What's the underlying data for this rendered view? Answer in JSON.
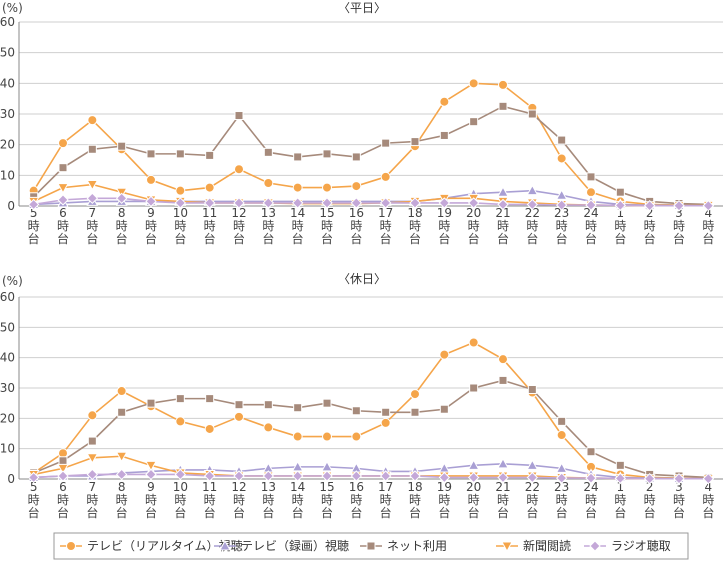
{
  "chart_data": [
    {
      "type": "line",
      "title": "〈平日〉",
      "unit_label": "(%)",
      "ylim": [
        0,
        60
      ],
      "yticks": [
        0,
        10,
        20,
        30,
        40,
        50,
        60
      ],
      "grid": true,
      "categories": [
        [
          "5",
          "時",
          "台"
        ],
        [
          "6",
          "時",
          "台"
        ],
        [
          "7",
          "時",
          "台"
        ],
        [
          "8",
          "時",
          "台"
        ],
        [
          "9",
          "時",
          "台"
        ],
        [
          "10",
          "時",
          "台"
        ],
        [
          "11",
          "時",
          "台"
        ],
        [
          "12",
          "時",
          "台"
        ],
        [
          "13",
          "時",
          "台"
        ],
        [
          "14",
          "時",
          "台"
        ],
        [
          "15",
          "時",
          "台"
        ],
        [
          "16",
          "時",
          "台"
        ],
        [
          "17",
          "時",
          "台"
        ],
        [
          "18",
          "時",
          "台"
        ],
        [
          "19",
          "時",
          "台"
        ],
        [
          "20",
          "時",
          "台"
        ],
        [
          "21",
          "時",
          "台"
        ],
        [
          "22",
          "時",
          "台"
        ],
        [
          "23",
          "時",
          "台"
        ],
        [
          "24",
          "時",
          "台"
        ],
        [
          "1",
          "時",
          "台"
        ],
        [
          "2",
          "時",
          "台"
        ],
        [
          "3",
          "時",
          "台"
        ],
        [
          "4",
          "時",
          "台"
        ]
      ],
      "series": [
        {
          "name": "テレビ（リアルタイム）視聴",
          "color": "#f5a54a",
          "marker": "circle",
          "values": [
            5,
            20.5,
            28,
            18.5,
            8.5,
            5,
            6,
            12,
            7.5,
            6,
            6,
            6.5,
            9.5,
            19.5,
            34,
            40,
            39.5,
            32,
            15.5,
            4.5,
            1.5,
            0.5,
            0.3,
            0.3
          ]
        },
        {
          "name": "テレビ（録画）視聴",
          "color": "#a99fd4",
          "marker": "triangle",
          "values": [
            0.5,
            1,
            1.5,
            1.5,
            1.5,
            1.5,
            1.5,
            1.5,
            1.5,
            1.5,
            1.5,
            1.5,
            1.5,
            1.5,
            2.5,
            4,
            4.5,
            5,
            3.5,
            1.5,
            0.5,
            0.3,
            0.2,
            0.2
          ]
        },
        {
          "name": "ネット利用",
          "color": "#a68a7b",
          "marker": "square",
          "values": [
            3,
            12.5,
            18.5,
            19.5,
            17,
            17,
            16.5,
            29.5,
            17.5,
            16,
            17,
            16,
            20.5,
            21,
            23,
            27.5,
            32.5,
            30,
            21.5,
            9.5,
            4.5,
            1.5,
            0.8,
            0.5
          ]
        },
        {
          "name": "新聞閲読",
          "color": "#f5a54a",
          "marker": "triangle-down",
          "values": [
            1.5,
            6,
            7,
            4.5,
            2,
            1.5,
            1,
            1,
            1,
            0.8,
            0.8,
            0.8,
            1,
            1.5,
            2.5,
            2.5,
            1.5,
            1,
            0.5,
            0.3,
            0.2,
            0.1,
            0.1,
            0.2
          ]
        },
        {
          "name": "ラジオ聴取",
          "color": "#c4a8d8",
          "marker": "diamond",
          "values": [
            0.5,
            2,
            2.5,
            2.5,
            1.5,
            1,
            1,
            1,
            1,
            1,
            1,
            1,
            1,
            1,
            1,
            1,
            0.5,
            0.5,
            0.3,
            0.3,
            0.2,
            0.1,
            0.1,
            0.1
          ]
        }
      ]
    },
    {
      "type": "line",
      "title": "〈休日〉",
      "unit_label": "(%)",
      "ylim": [
        0,
        60
      ],
      "yticks": [
        0,
        10,
        20,
        30,
        40,
        50,
        60
      ],
      "grid": true,
      "categories": [
        [
          "5",
          "時",
          "台"
        ],
        [
          "6",
          "時",
          "台"
        ],
        [
          "7",
          "時",
          "台"
        ],
        [
          "8",
          "時",
          "台"
        ],
        [
          "9",
          "時",
          "台"
        ],
        [
          "10",
          "時",
          "台"
        ],
        [
          "11",
          "時",
          "台"
        ],
        [
          "12",
          "時",
          "台"
        ],
        [
          "13",
          "時",
          "台"
        ],
        [
          "14",
          "時",
          "台"
        ],
        [
          "15",
          "時",
          "台"
        ],
        [
          "16",
          "時",
          "台"
        ],
        [
          "17",
          "時",
          "台"
        ],
        [
          "18",
          "時",
          "台"
        ],
        [
          "19",
          "時",
          "台"
        ],
        [
          "20",
          "時",
          "台"
        ],
        [
          "21",
          "時",
          "台"
        ],
        [
          "22",
          "時",
          "台"
        ],
        [
          "23",
          "時",
          "台"
        ],
        [
          "24",
          "時",
          "台"
        ],
        [
          "1",
          "時",
          "台"
        ],
        [
          "2",
          "時",
          "台"
        ],
        [
          "3",
          "時",
          "台"
        ],
        [
          "4",
          "時",
          "台"
        ]
      ],
      "series": [
        {
          "name": "テレビ（リアルタイム）視聴",
          "color": "#f5a54a",
          "marker": "circle",
          "values": [
            2,
            8.5,
            21,
            29,
            24,
            19,
            16.5,
            20.5,
            17,
            14,
            14,
            14,
            18.5,
            28,
            41,
            45,
            39.5,
            28.5,
            14.5,
            4,
            1.5,
            0.5,
            0.3,
            0.3
          ]
        },
        {
          "name": "テレビ（録画）視聴",
          "color": "#a99fd4",
          "marker": "triangle",
          "values": [
            0.5,
            1,
            1,
            2,
            2.5,
            3,
            3,
            2.5,
            3.5,
            4,
            4,
            3.5,
            2.5,
            2.5,
            3.5,
            4.5,
            5,
            4.5,
            3.5,
            1.5,
            0.5,
            0.3,
            0.2,
            0.2
          ]
        },
        {
          "name": "ネット利用",
          "color": "#a68a7b",
          "marker": "square",
          "values": [
            2,
            6,
            12.5,
            22,
            25,
            26.5,
            26.5,
            24.5,
            24.5,
            23.5,
            25,
            22.5,
            22,
            22,
            23,
            30,
            32.5,
            29.5,
            19,
            9,
            4.5,
            1.5,
            1,
            0.5
          ]
        },
        {
          "name": "新聞閲読",
          "color": "#f5a54a",
          "marker": "triangle-down",
          "values": [
            1.5,
            3.5,
            7,
            7.5,
            4.5,
            2,
            1.5,
            1,
            1,
            1,
            1,
            1,
            1,
            1,
            1,
            1,
            1,
            1,
            0.5,
            0.3,
            0.2,
            0.1,
            0.1,
            0.1
          ]
        },
        {
          "name": "ラジオ聴取",
          "color": "#c4a8d8",
          "marker": "diamond",
          "values": [
            0.5,
            1,
            1.5,
            1.5,
            1.5,
            1.5,
            1,
            1,
            1,
            1,
            1,
            1,
            1,
            1,
            0.5,
            0.5,
            0.5,
            0.5,
            0.3,
            0.3,
            0.2,
            0.1,
            0.1,
            0.1
          ]
        }
      ]
    }
  ],
  "legend": [
    {
      "label": "テレビ（リアルタイム）視聴",
      "color": "#f5a54a",
      "marker": "circle"
    },
    {
      "label": "テレビ（録画）視聴",
      "color": "#a99fd4",
      "marker": "triangle"
    },
    {
      "label": "ネット利用",
      "color": "#a68a7b",
      "marker": "square"
    },
    {
      "label": "新聞閲読",
      "color": "#f5a54a",
      "marker": "triangle-down"
    },
    {
      "label": "ラジオ聴取",
      "color": "#c4a8d8",
      "marker": "diamond"
    }
  ]
}
